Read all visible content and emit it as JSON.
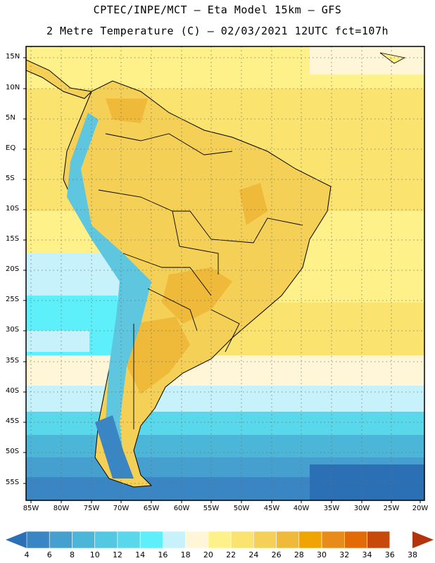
{
  "header": {
    "title_line1": "CPTEC/INPE/MCT –  Eta Model 15km – GFS",
    "title_line2": "2 Metre Temperature (C) – 02/03/2021 12UTC fct=107h"
  },
  "map": {
    "lat_labels": [
      "15N",
      "10N",
      "5N",
      "EQ",
      "5S",
      "10S",
      "15S",
      "20S",
      "25S",
      "30S",
      "35S",
      "40S",
      "45S",
      "50S",
      "55S"
    ],
    "lon_labels": [
      "85W",
      "80W",
      "75W",
      "70W",
      "65W",
      "60W",
      "55W",
      "50W",
      "45W",
      "40W",
      "35W",
      "30W",
      "25W",
      "20W"
    ]
  },
  "colorbar": {
    "labels": [
      "4",
      "6",
      "8",
      "10",
      "12",
      "14",
      "16",
      "18",
      "20",
      "22",
      "24",
      "26",
      "28",
      "30",
      "32",
      "34",
      "36",
      "38"
    ],
    "colors": [
      "#2b6fb4",
      "#3a86c4",
      "#45a0cf",
      "#4cb6d9",
      "#52c8e2",
      "#58d8ea",
      "#5ef0fa",
      "#c8f2fb",
      "#fff6d8",
      "#fff18a",
      "#fbe370",
      "#f5d056",
      "#efb93a",
      "#efa400",
      "#e98b19",
      "#e26b08",
      "#c84a0a",
      "#b4330c"
    ]
  }
}
